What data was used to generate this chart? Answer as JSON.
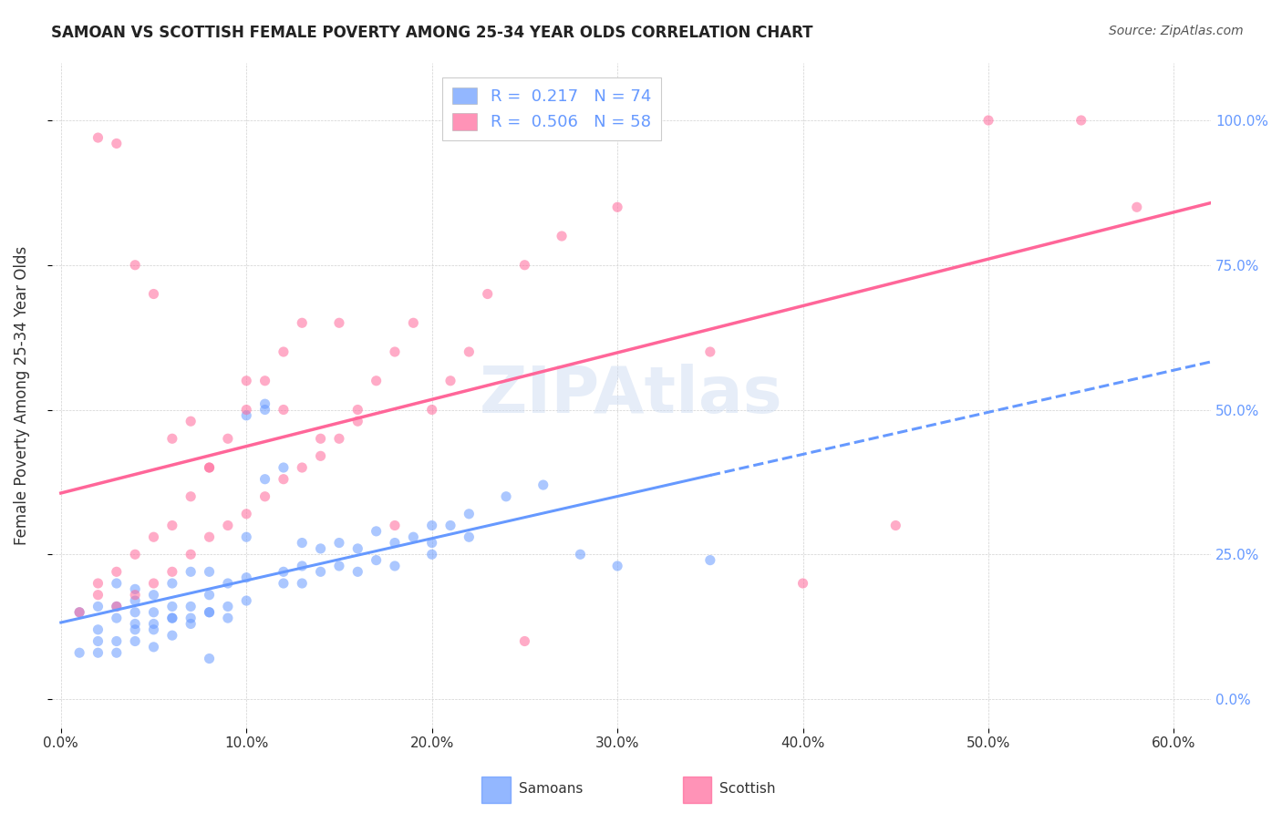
{
  "title": "SAMOAN VS SCOTTISH FEMALE POVERTY AMONG 25-34 YEAR OLDS CORRELATION CHART",
  "source": "Source: ZipAtlas.com",
  "ylabel": "Female Poverty Among 25-34 Year Olds",
  "xlim": [
    -0.005,
    0.62
  ],
  "ylim": [
    -0.05,
    1.1
  ],
  "x_ticks": [
    0.0,
    0.1,
    0.2,
    0.3,
    0.4,
    0.5,
    0.6
  ],
  "x_tick_labels": [
    "0.0%",
    "10.0%",
    "20.0%",
    "30.0%",
    "40.0%",
    "50.0%",
    "60.0%"
  ],
  "y_ticks": [
    0.0,
    0.25,
    0.5,
    0.75,
    1.0
  ],
  "y_tick_labels": [
    "0.0%",
    "25.0%",
    "50.0%",
    "75.0%",
    "100.0%"
  ],
  "watermark": "ZIPAtlas",
  "samoan_R": 0.217,
  "samoan_N": 74,
  "scottish_R": 0.506,
  "scottish_N": 58,
  "samoan_color": "#6699ff",
  "scottish_color": "#ff6699",
  "samoan_line_solid_end": 0.35,
  "samoan_line_dash_end": 0.62,
  "scottish_line_end": 0.62,
  "samoan_scatter_x": [
    0.01,
    0.02,
    0.02,
    0.03,
    0.03,
    0.03,
    0.04,
    0.04,
    0.04,
    0.04,
    0.05,
    0.05,
    0.05,
    0.06,
    0.06,
    0.06,
    0.07,
    0.07,
    0.07,
    0.08,
    0.08,
    0.08,
    0.09,
    0.09,
    0.1,
    0.1,
    0.1,
    0.11,
    0.11,
    0.12,
    0.12,
    0.13,
    0.13,
    0.14,
    0.14,
    0.15,
    0.15,
    0.16,
    0.16,
    0.17,
    0.17,
    0.18,
    0.18,
    0.19,
    0.2,
    0.2,
    0.21,
    0.22,
    0.24,
    0.26,
    0.01,
    0.02,
    0.02,
    0.03,
    0.03,
    0.04,
    0.04,
    0.05,
    0.05,
    0.06,
    0.06,
    0.07,
    0.08,
    0.08,
    0.09,
    0.1,
    0.11,
    0.12,
    0.13,
    0.2,
    0.22,
    0.28,
    0.3,
    0.35
  ],
  "samoan_scatter_y": [
    0.15,
    0.12,
    0.16,
    0.14,
    0.16,
    0.2,
    0.13,
    0.15,
    0.17,
    0.19,
    0.13,
    0.15,
    0.18,
    0.14,
    0.16,
    0.2,
    0.14,
    0.16,
    0.22,
    0.15,
    0.18,
    0.22,
    0.16,
    0.2,
    0.17,
    0.21,
    0.49,
    0.5,
    0.51,
    0.2,
    0.22,
    0.2,
    0.23,
    0.22,
    0.26,
    0.23,
    0.27,
    0.22,
    0.26,
    0.24,
    0.29,
    0.23,
    0.27,
    0.28,
    0.27,
    0.3,
    0.3,
    0.32,
    0.35,
    0.37,
    0.08,
    0.08,
    0.1,
    0.08,
    0.1,
    0.1,
    0.12,
    0.09,
    0.12,
    0.11,
    0.14,
    0.13,
    0.07,
    0.15,
    0.14,
    0.28,
    0.38,
    0.4,
    0.27,
    0.25,
    0.28,
    0.25,
    0.23,
    0.24
  ],
  "scottish_scatter_x": [
    0.01,
    0.02,
    0.02,
    0.03,
    0.03,
    0.04,
    0.04,
    0.05,
    0.05,
    0.06,
    0.06,
    0.07,
    0.07,
    0.08,
    0.08,
    0.09,
    0.09,
    0.1,
    0.1,
    0.11,
    0.11,
    0.12,
    0.12,
    0.13,
    0.13,
    0.14,
    0.15,
    0.15,
    0.16,
    0.17,
    0.18,
    0.19,
    0.2,
    0.21,
    0.22,
    0.23,
    0.25,
    0.27,
    0.3,
    0.35,
    0.4,
    0.45,
    0.5,
    0.55,
    0.58,
    0.02,
    0.03,
    0.04,
    0.05,
    0.06,
    0.07,
    0.08,
    0.1,
    0.12,
    0.14,
    0.16,
    0.18,
    0.25
  ],
  "scottish_scatter_y": [
    0.15,
    0.18,
    0.2,
    0.16,
    0.22,
    0.18,
    0.25,
    0.2,
    0.28,
    0.22,
    0.3,
    0.25,
    0.35,
    0.28,
    0.4,
    0.3,
    0.45,
    0.32,
    0.5,
    0.35,
    0.55,
    0.38,
    0.6,
    0.4,
    0.65,
    0.42,
    0.45,
    0.65,
    0.48,
    0.55,
    0.6,
    0.65,
    0.5,
    0.55,
    0.6,
    0.7,
    0.75,
    0.8,
    0.85,
    0.6,
    0.2,
    0.3,
    1.0,
    1.0,
    0.85,
    0.97,
    0.96,
    0.75,
    0.7,
    0.45,
    0.48,
    0.4,
    0.55,
    0.5,
    0.45,
    0.5,
    0.3,
    0.1
  ]
}
